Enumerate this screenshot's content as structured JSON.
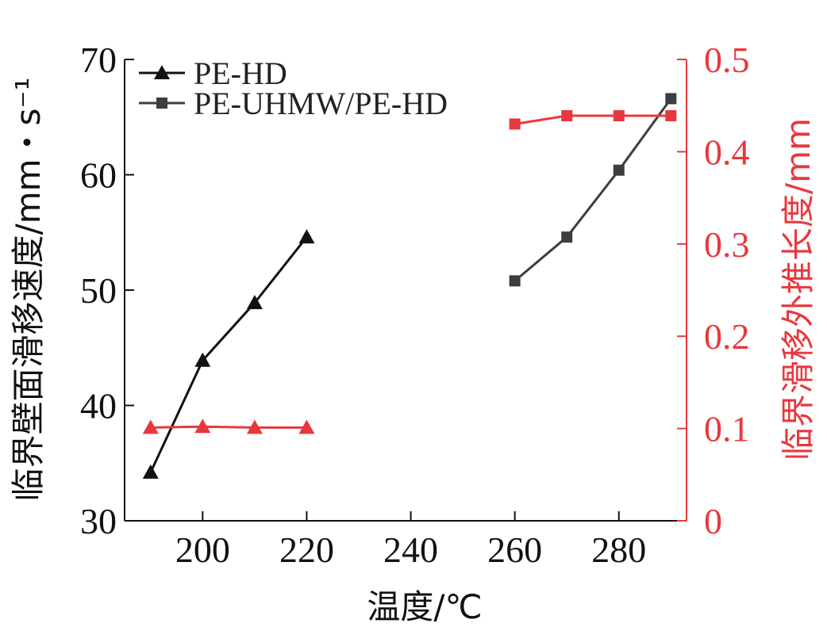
{
  "chart_data": {
    "type": "line",
    "xlabel": "温度/℃",
    "ylabel_left": "临界壁面滑移速度/mm・s⁻¹",
    "ylabel_right": "临界滑移外推长度/mm",
    "x_ticks": [
      200,
      220,
      240,
      260,
      280
    ],
    "y_left_ticks": [
      30,
      40,
      50,
      60,
      70
    ],
    "y_right_tick_labels": [
      "0",
      "0.1",
      "0.2",
      "0.3",
      "0.4",
      "0.5"
    ],
    "xlim": [
      185,
      293
    ],
    "ylim_left": [
      30,
      70
    ],
    "ylim_right": [
      0,
      0.5
    ],
    "legend": [
      {
        "label": "PE-HD",
        "marker": "triangle"
      },
      {
        "label": "PE-UHMW/PE-HD",
        "marker": "square"
      }
    ],
    "series": [
      {
        "name": "PE-HD",
        "axis": "left",
        "marker": "triangle",
        "color": "#111111",
        "x": [
          190,
          200,
          210,
          220
        ],
        "y": [
          34.2,
          43.9,
          48.9,
          54.6
        ]
      },
      {
        "name": "PE-UHMW/PE-HD",
        "axis": "left",
        "marker": "square",
        "color": "#3d3d3d",
        "x": [
          260,
          270,
          280,
          290
        ],
        "y": [
          50.8,
          54.6,
          60.4,
          66.6
        ]
      },
      {
        "name": "PE-HD",
        "axis": "right",
        "marker": "triangle",
        "color": "#e8383d",
        "x": [
          190,
          200,
          210,
          220
        ],
        "y": [
          0.101,
          0.102,
          0.101,
          0.101
        ]
      },
      {
        "name": "PE-UHMW/PE-HD",
        "axis": "right",
        "marker": "square",
        "color": "#e8383d",
        "x": [
          260,
          270,
          280,
          290
        ],
        "y": [
          0.43,
          0.439,
          0.439,
          0.439
        ]
      }
    ],
    "colors": {
      "left_axis": "#111111",
      "right_axis": "#e8383d"
    },
    "grid": false,
    "legend_position": "top-left"
  }
}
